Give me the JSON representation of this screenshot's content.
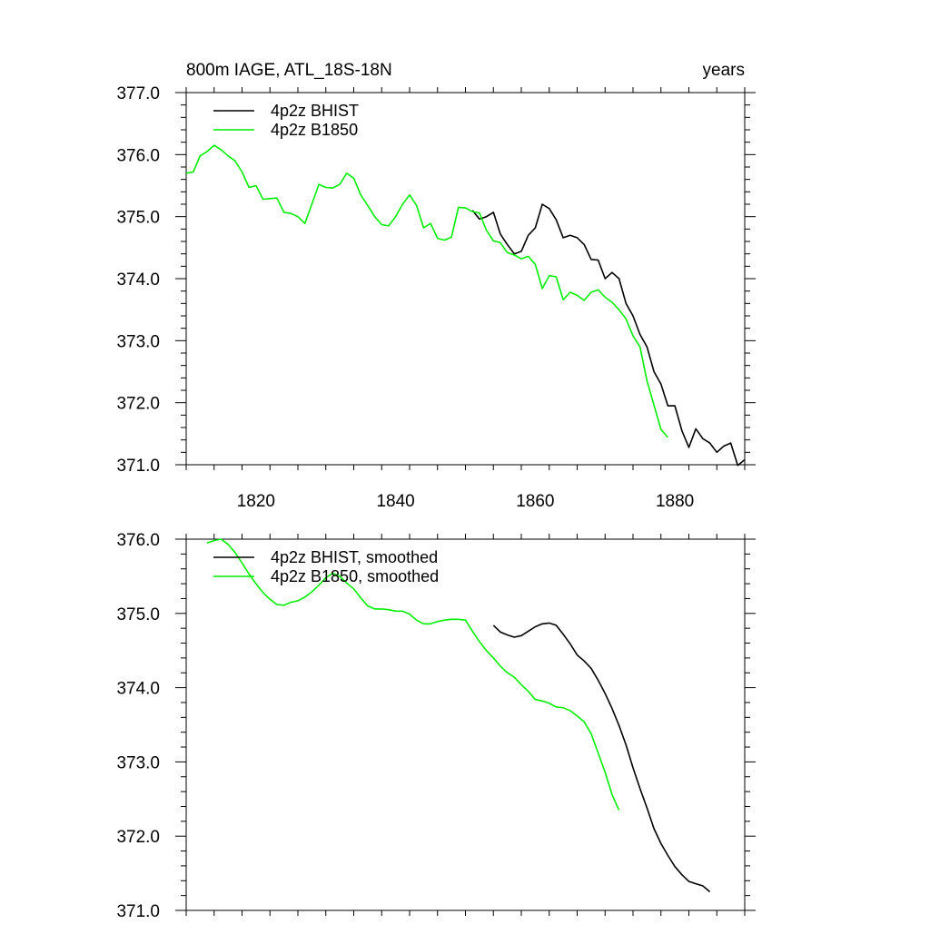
{
  "colors": {
    "black": "#000000",
    "green": "#00ee00"
  },
  "chart_data": [
    {
      "type": "line",
      "title": "800m IAGE, ATL_18S-18N",
      "title_right": "years",
      "xlim": [
        1810,
        1890
      ],
      "ylim": [
        371.0,
        377.0
      ],
      "x_ticks": [
        1820,
        1840,
        1860,
        1880
      ],
      "x_tick_labels": [
        "1820",
        "1840",
        "1860",
        "1880"
      ],
      "y_ticks": [
        371.0,
        372.0,
        373.0,
        374.0,
        375.0,
        376.0,
        377.0
      ],
      "y_tick_labels": [
        "371.0",
        "372.0",
        "373.0",
        "374.0",
        "375.0",
        "376.0",
        "377.0"
      ],
      "legend": "top-left",
      "series": [
        {
          "name": "4p2z BHIST",
          "color": "#000000",
          "x": [
            1851,
            1852,
            1853,
            1854,
            1855,
            1856,
            1857,
            1858,
            1859,
            1860,
            1861,
            1862,
            1863,
            1864,
            1865,
            1866,
            1867,
            1868,
            1869,
            1870,
            1871,
            1872,
            1873,
            1874,
            1875,
            1876,
            1877,
            1878,
            1879,
            1880,
            1881,
            1882,
            1883,
            1884,
            1885,
            1886,
            1887,
            1888,
            1889,
            1890
          ],
          "y": [
            375.1,
            374.96,
            375.0,
            375.07,
            374.72,
            374.55,
            374.4,
            374.44,
            374.7,
            374.82,
            375.2,
            375.13,
            374.95,
            374.66,
            374.7,
            374.66,
            374.55,
            374.31,
            374.3,
            374.0,
            374.1,
            374.0,
            373.6,
            373.4,
            373.1,
            372.9,
            372.5,
            372.3,
            371.95,
            371.95,
            371.55,
            371.28,
            371.58,
            371.42,
            371.35,
            371.2,
            371.3,
            371.35,
            370.99,
            371.08
          ]
        },
        {
          "name": "4p2z B1850",
          "color": "#00ee00",
          "x": [
            1810,
            1811,
            1812,
            1813,
            1814,
            1815,
            1816,
            1817,
            1818,
            1819,
            1820,
            1821,
            1822,
            1823,
            1824,
            1825,
            1826,
            1827,
            1828,
            1829,
            1830,
            1831,
            1832,
            1833,
            1834,
            1835,
            1836,
            1837,
            1838,
            1839,
            1840,
            1841,
            1842,
            1843,
            1844,
            1845,
            1846,
            1847,
            1848,
            1849,
            1850,
            1851,
            1852,
            1853,
            1854,
            1855,
            1856,
            1857,
            1858,
            1859,
            1860,
            1861,
            1862,
            1863,
            1864,
            1865,
            1866,
            1867,
            1868,
            1869,
            1870,
            1871,
            1872,
            1873,
            1874,
            1875,
            1876,
            1877,
            1878,
            1879,
            1880
          ],
          "y": [
            375.7,
            375.72,
            375.98,
            376.05,
            376.15,
            376.08,
            375.98,
            375.9,
            375.72,
            375.47,
            375.5,
            375.28,
            375.29,
            375.3,
            375.07,
            375.05,
            375.0,
            374.89,
            375.2,
            375.52,
            375.47,
            375.46,
            375.52,
            375.7,
            375.62,
            375.35,
            375.18,
            375.0,
            374.87,
            374.85,
            375.0,
            375.2,
            375.35,
            375.18,
            374.82,
            374.89,
            374.65,
            374.62,
            374.67,
            375.15,
            375.14,
            375.08,
            375.06,
            374.78,
            374.61,
            374.58,
            374.42,
            374.38,
            374.32,
            374.36,
            374.23,
            373.84,
            374.05,
            374.03,
            373.66,
            373.78,
            373.73,
            373.65,
            373.78,
            373.82,
            373.7,
            373.62,
            373.5,
            373.35,
            373.08,
            372.9,
            372.35,
            371.96,
            371.57,
            371.44,
            null
          ]
        }
      ]
    },
    {
      "type": "line",
      "xlim": [
        1810,
        1890
      ],
      "ylim": [
        371.0,
        376.0
      ],
      "x_ticks": [
        1820,
        1840,
        1860,
        1880
      ],
      "y_ticks": [
        371.0,
        372.0,
        373.0,
        374.0,
        375.0,
        376.0
      ],
      "y_tick_labels": [
        "371.0",
        "372.0",
        "373.0",
        "374.0",
        "375.0",
        "376.0"
      ],
      "legend": "top-left",
      "series": [
        {
          "name": "4p2z BHIST, smoothed",
          "color": "#000000",
          "x": [
            1854,
            1855,
            1856,
            1857,
            1858,
            1859,
            1860,
            1861,
            1862,
            1863,
            1864,
            1865,
            1866,
            1867,
            1868,
            1869,
            1870,
            1871,
            1872,
            1873,
            1874,
            1875,
            1876,
            1877,
            1878,
            1879,
            1880,
            1881,
            1882,
            1883,
            1884,
            1885,
            1886,
            1887
          ],
          "y": [
            374.84,
            374.75,
            374.71,
            374.68,
            374.7,
            374.76,
            374.82,
            374.86,
            374.87,
            374.84,
            374.72,
            374.59,
            374.44,
            374.36,
            374.26,
            374.1,
            373.92,
            373.72,
            373.49,
            373.23,
            372.92,
            372.64,
            372.38,
            372.1,
            371.9,
            371.74,
            371.59,
            371.48,
            371.39,
            371.36,
            371.33,
            371.25,
            null,
            null
          ]
        },
        {
          "name": "4p2z B1850, smoothed",
          "color": "#00ee00",
          "x": [
            1813,
            1814,
            1815,
            1816,
            1817,
            1818,
            1819,
            1820,
            1821,
            1822,
            1823,
            1824,
            1825,
            1826,
            1827,
            1828,
            1829,
            1830,
            1831,
            1832,
            1833,
            1834,
            1835,
            1836,
            1837,
            1838,
            1839,
            1840,
            1841,
            1842,
            1843,
            1844,
            1845,
            1846,
            1847,
            1848,
            1849,
            1850,
            1851,
            1852,
            1853,
            1854,
            1855,
            1856,
            1857,
            1858,
            1859,
            1860,
            1861,
            1862,
            1863,
            1864,
            1865,
            1866,
            1867,
            1868,
            1869,
            1870,
            1871,
            1872,
            1873,
            1874,
            1875,
            1876,
            1877
          ],
          "y": [
            375.95,
            375.98,
            376.0,
            375.93,
            375.82,
            375.68,
            375.53,
            375.4,
            375.28,
            375.19,
            375.12,
            375.11,
            375.15,
            375.17,
            375.22,
            375.29,
            375.38,
            375.48,
            375.54,
            375.5,
            375.41,
            375.33,
            375.21,
            375.1,
            375.06,
            375.06,
            375.05,
            375.03,
            375.03,
            374.99,
            374.91,
            374.86,
            374.86,
            374.89,
            374.91,
            374.92,
            374.92,
            374.91,
            374.76,
            374.62,
            374.5,
            374.4,
            374.29,
            374.2,
            374.14,
            374.04,
            373.95,
            373.84,
            373.82,
            373.79,
            373.74,
            373.73,
            373.69,
            373.62,
            373.54,
            373.38,
            373.12,
            372.86,
            372.56,
            372.35,
            null,
            null,
            null,
            null,
            null
          ]
        }
      ]
    }
  ]
}
